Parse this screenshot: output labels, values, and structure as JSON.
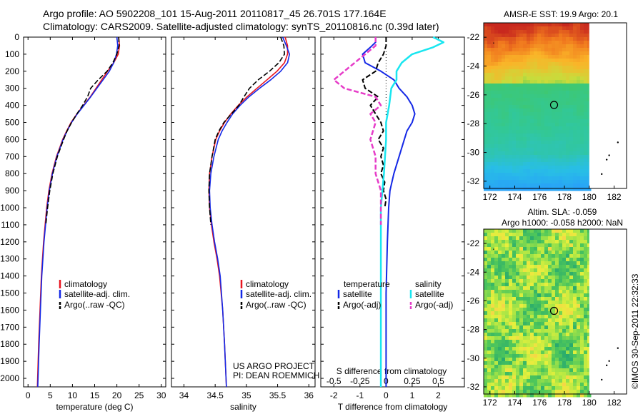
{
  "header": {
    "line1": "Argo profile: AO 5902208_101 15-Aug-2011 20110817_45 26.701S 177.164E",
    "line2": "Climatology: CARS2009. Satellite-adjusted climatology: synTS_20110816.nc (0.39d later)"
  },
  "credits": {
    "project": "US ARGO PROJECT",
    "pi": "PI: DEAN ROEMMICH",
    "stamp": "©IMOS 30-Sep-2011 22:32:33"
  },
  "colors": {
    "climatology": "#e8141e",
    "satellite": "#1428e6",
    "argo": "#000000",
    "s_satellite": "#19e6f0",
    "s_argo": "#e63cc8"
  },
  "chart_data": [
    {
      "type": "line",
      "xlabel": "temperature (deg C)",
      "ylabel": "",
      "xlim": [
        -1,
        31
      ],
      "ylim": [
        2050,
        0
      ],
      "xticks": [
        0,
        5,
        10,
        15,
        20,
        25,
        30
      ],
      "yticks": [
        0,
        100,
        200,
        300,
        400,
        500,
        600,
        700,
        800,
        900,
        1000,
        1100,
        1200,
        1300,
        1400,
        1500,
        1600,
        1700,
        1800,
        1900,
        2000
      ],
      "legend": [
        "climatology",
        "satellite-adj. clim.",
        "Argo(..raw -QC)"
      ],
      "series": [
        {
          "name": "climatology",
          "depth": [
            0,
            50,
            100,
            150,
            200,
            250,
            300,
            350,
            400,
            450,
            500,
            550,
            600,
            650,
            700,
            800,
            900,
            1000,
            1200,
            1400,
            1600,
            1800,
            2050
          ],
          "values": [
            20.4,
            20.6,
            20.3,
            19.3,
            17.9,
            16.6,
            15.3,
            14.0,
            12.5,
            11.0,
            9.7,
            8.7,
            7.8,
            7.1,
            6.4,
            5.4,
            4.7,
            4.2,
            3.5,
            3.0,
            2.7,
            2.4,
            2.1
          ]
        },
        {
          "name": "satellite-adj. clim.",
          "depth": [
            0,
            50,
            100,
            150,
            200,
            250,
            300,
            350,
            400,
            450,
            500,
            550,
            600,
            650,
            700,
            800,
            900,
            1000,
            1200,
            1400,
            1600,
            1800,
            2050
          ],
          "values": [
            20.0,
            20.2,
            19.9,
            19.3,
            18.3,
            16.9,
            15.5,
            14.1,
            12.6,
            11.1,
            9.8,
            8.8,
            7.9,
            7.2,
            6.5,
            5.5,
            4.8,
            4.3,
            3.6,
            3.1,
            2.8,
            2.5,
            2.2
          ]
        },
        {
          "name": "Argo(..raw -QC)",
          "depth": [
            0,
            50,
            100,
            150,
            200,
            250,
            300,
            350,
            400,
            450,
            500,
            550,
            600,
            650,
            700,
            800,
            900,
            1000,
            1100
          ],
          "values": [
            20.4,
            20.5,
            20.0,
            19.1,
            17.8,
            15.8,
            14.1,
            13.4,
            12.3,
            11.0,
            9.8,
            8.8,
            8.0,
            7.3,
            6.6,
            5.6,
            4.9,
            4.4,
            4.0
          ]
        }
      ]
    },
    {
      "type": "line",
      "xlabel": "salinity",
      "ylabel": "",
      "xlim": [
        33.8,
        36.1
      ],
      "ylim": [
        2050,
        0
      ],
      "xticks": [
        34,
        34.5,
        35,
        35.5,
        36
      ],
      "xticklabels": [
        "34",
        "34.5",
        "35",
        "35.5",
        "36"
      ],
      "legend": [
        "climatology",
        "satellite-adj. clim.",
        "Argo(..raw -QC)"
      ],
      "series": [
        {
          "name": "climatology",
          "depth": [
            0,
            50,
            100,
            150,
            200,
            250,
            300,
            350,
            400,
            450,
            500,
            550,
            600,
            700,
            800,
            900,
            1000,
            1100,
            1200,
            1300,
            1400,
            1600,
            1800,
            2050
          ],
          "values": [
            35.62,
            35.66,
            35.66,
            35.61,
            35.49,
            35.33,
            35.17,
            35.01,
            34.87,
            34.75,
            34.65,
            34.57,
            34.51,
            34.45,
            34.41,
            34.4,
            34.41,
            34.44,
            34.48,
            34.53,
            34.57,
            34.62,
            34.65,
            34.68
          ]
        },
        {
          "name": "satellite-adj. clim.",
          "depth": [
            0,
            50,
            100,
            150,
            200,
            250,
            300,
            350,
            400,
            450,
            500,
            550,
            600,
            700,
            800,
            900,
            1000,
            1100,
            1200,
            1300,
            1400,
            1600,
            1800,
            2050
          ],
          "values": [
            35.58,
            35.64,
            35.69,
            35.66,
            35.55,
            35.39,
            35.21,
            35.04,
            34.9,
            34.78,
            34.69,
            34.61,
            34.55,
            34.48,
            34.43,
            34.41,
            34.42,
            34.45,
            34.49,
            34.54,
            34.58,
            34.62,
            34.65,
            34.68
          ]
        },
        {
          "name": "Argo(..raw -QC)",
          "depth": [
            0,
            50,
            100,
            150,
            200,
            250,
            300,
            350,
            400,
            450,
            500,
            550,
            600,
            700,
            800,
            900,
            1000,
            1100
          ],
          "values": [
            35.55,
            35.6,
            35.61,
            35.52,
            35.37,
            35.19,
            35.05,
            34.96,
            34.88,
            34.76,
            34.64,
            34.56,
            34.5,
            34.45,
            34.41,
            34.4,
            34.41,
            34.43
          ]
        }
      ]
    },
    {
      "type": "line",
      "xlabel": "T difference from climatology",
      "secondary_xlabel": "S difference from climatology",
      "xlim": [
        -2.5,
        3
      ],
      "ylim": [
        2050,
        0
      ],
      "xticks": [
        -2,
        -1,
        0,
        1,
        2
      ],
      "secondary_xticks": [
        -0.5,
        -0.25,
        0,
        0.25,
        0.5
      ],
      "secondary_xticklabels": [
        "-0.5",
        "-0.25",
        "0",
        "0.25",
        "0.5"
      ],
      "legend": [
        "temperature",
        "satellite",
        "Argo(-adj)",
        "salinity",
        "satellite",
        "Argo(-adj)"
      ],
      "series": [
        {
          "name": "satellite",
          "depth": [
            0,
            30,
            60,
            100,
            150,
            200,
            250,
            300,
            350,
            400,
            450,
            500,
            550,
            600,
            700,
            800,
            900,
            1000,
            1200,
            1500,
            1800,
            2050
          ],
          "values": [
            -0.4,
            -0.4,
            -0.6,
            -0.9,
            -0.8,
            -0.2,
            0.3,
            0.5,
            0.8,
            1.0,
            1.1,
            1.0,
            0.8,
            0.7,
            0.5,
            0.3,
            0.15,
            0.1,
            0.05,
            0.0,
            0.0,
            0.0
          ]
        },
        {
          "name": "Argo(-adj)",
          "depth": [
            0,
            50,
            100,
            150,
            200,
            250,
            300,
            350,
            400,
            450,
            500,
            550,
            600,
            650,
            700,
            750,
            800,
            850,
            900,
            950,
            1000
          ],
          "values": [
            0.0,
            0.0,
            -0.1,
            -0.3,
            -0.4,
            -0.9,
            -0.8,
            -0.3,
            -0.6,
            -0.4,
            -0.2,
            -0.1,
            -0.3,
            -0.1,
            -0.2,
            -0.1,
            -0.2,
            -0.05,
            -0.1,
            0.0,
            -0.05
          ]
        },
        {
          "name": "satellite",
          "depth": [
            0,
            30,
            60,
            100,
            150,
            200,
            250,
            300,
            400,
            500,
            600,
            800,
            1000,
            1200,
            1500,
            1800,
            2050
          ],
          "values": [
            0.45,
            0.55,
            0.45,
            0.25,
            0.15,
            0.1,
            0.1,
            0.05,
            0.03,
            0.0,
            0.0,
            -0.02,
            -0.05,
            -0.05,
            -0.05,
            -0.05,
            -0.05
          ]
        },
        {
          "name": "Argo(-adj)",
          "depth": [
            0,
            50,
            100,
            150,
            200,
            250,
            300,
            350,
            400,
            450,
            500,
            600,
            700,
            800,
            900,
            1000,
            1100
          ],
          "values": [
            -0.1,
            -0.1,
            -0.2,
            -0.3,
            -0.4,
            -0.5,
            -0.4,
            -0.1,
            -0.05,
            -0.15,
            -0.1,
            -0.15,
            -0.1,
            -0.1,
            -0.05,
            -0.05,
            -0.05
          ]
        }
      ]
    },
    {
      "type": "heatmap",
      "title": "AMSR-E SST: 19.9 Argo: 20.1",
      "xlim": [
        171.5,
        183
      ],
      "ylim": [
        -32.5,
        -21
      ],
      "xticks": [
        172,
        174,
        176,
        178,
        180,
        182
      ],
      "yticks": [
        -22,
        -24,
        -26,
        -28,
        -30,
        -32
      ],
      "marker": {
        "lon": 177.164,
        "lat": -26.701
      }
    },
    {
      "type": "heatmap",
      "title": "Altim. SLA: -0.059",
      "subtitle": "Argo h1000: -0.058 h2000: NaN",
      "xlim": [
        171.5,
        183
      ],
      "ylim": [
        -32.5,
        -21
      ],
      "xticks": [
        172,
        174,
        176,
        178,
        180,
        182
      ],
      "yticks": [
        -22,
        -24,
        -26,
        -28,
        -30,
        -32
      ],
      "marker": {
        "lon": 177.164,
        "lat": -26.701
      }
    }
  ]
}
